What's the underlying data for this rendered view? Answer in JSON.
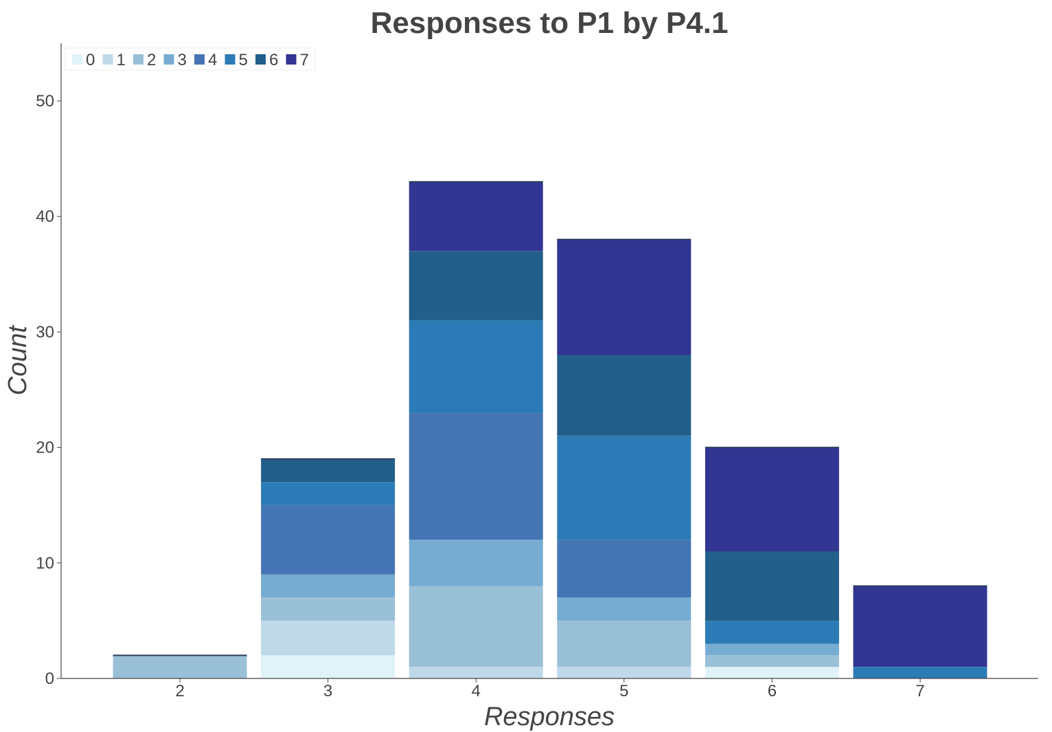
{
  "chart_data": {
    "type": "bar",
    "stacked": true,
    "title": "Responses to P1 by P4.1",
    "xlabel": "Responses",
    "ylabel": "Count",
    "categories": [
      "2",
      "3",
      "4",
      "5",
      "6",
      "7"
    ],
    "ylim": [
      0,
      55
    ],
    "yticks": [
      0,
      10,
      20,
      30,
      40,
      50
    ],
    "grid": false,
    "legend": {
      "position": "top-left",
      "orientation": "horizontal"
    },
    "series": [
      {
        "name": "0",
        "color": "#e0f3f8",
        "values": [
          0,
          2,
          0,
          0,
          1,
          0
        ]
      },
      {
        "name": "1",
        "color": "#c0d9e9",
        "values": [
          0,
          3,
          1,
          1,
          0,
          0
        ]
      },
      {
        "name": "2",
        "color": "#9ac0d8",
        "values": [
          2,
          2,
          7,
          4,
          1,
          0
        ]
      },
      {
        "name": "3",
        "color": "#77acd2",
        "values": [
          0,
          2,
          4,
          2,
          1,
          0
        ]
      },
      {
        "name": "4",
        "color": "#4575b4",
        "values": [
          0,
          6,
          11,
          5,
          0,
          0
        ]
      },
      {
        "name": "5",
        "color": "#2c7bb6",
        "values": [
          0,
          2,
          8,
          9,
          2,
          1
        ]
      },
      {
        "name": "6",
        "color": "#225f8a",
        "values": [
          0,
          2,
          6,
          7,
          6,
          0
        ]
      },
      {
        "name": "7",
        "color": "#333593",
        "values": [
          0,
          0,
          6,
          10,
          9,
          7
        ]
      }
    ]
  }
}
